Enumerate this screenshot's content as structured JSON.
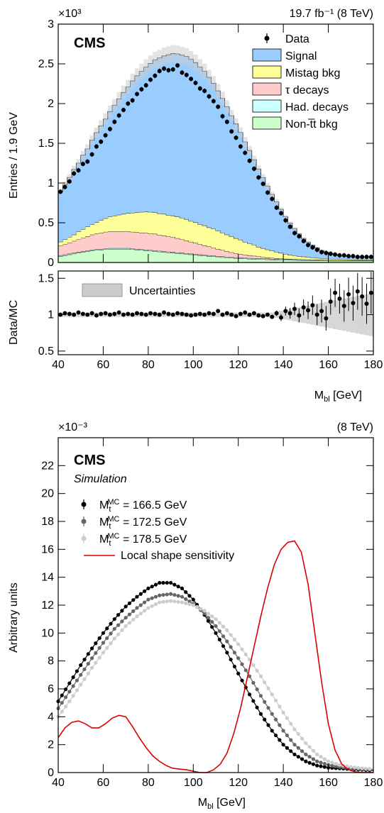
{
  "colors": {
    "signal": "#99ccff",
    "mistag": "#ffff99",
    "tau": "#ffcccc",
    "had": "#ccffff",
    "nontt": "#ccffcc",
    "unc": "#cccccc",
    "data": "#000000",
    "mc1665": "#000000",
    "mc1725": "#666666",
    "mc1785": "#cccccc",
    "sens": "#dd0000"
  },
  "chart_data": [
    {
      "type": "bar",
      "title": "",
      "cms_label": "CMS",
      "lumi_label": "19.7 fb⁻¹ (8 TeV)",
      "multiplier_label": "×10³",
      "xlabel": "M_bl [GeV]",
      "ylabel": "Entries / 1.9 GeV",
      "xlim": [
        40,
        180
      ],
      "ylim": [
        0,
        3
      ],
      "yticks": [
        "0",
        "0.5",
        "1",
        "1.5",
        "2",
        "2.5",
        "3"
      ],
      "xticks": [
        "40",
        "60",
        "80",
        "100",
        "120",
        "140",
        "160",
        "180"
      ],
      "legend_position": "top-right",
      "legend": [
        "Data",
        "Signal",
        "Mistag bkg",
        "τ decays",
        "Had. decays",
        "Non-t̅t bkg"
      ],
      "series": [
        {
          "name": "Data",
          "x": [
            41,
            43,
            45,
            47,
            49,
            51,
            53,
            55,
            57,
            59,
            61,
            63,
            65,
            67,
            69,
            71,
            73,
            75,
            77,
            79,
            81,
            83,
            85,
            87,
            89,
            91,
            93,
            95,
            97,
            99,
            101,
            103,
            105,
            107,
            109,
            111,
            113,
            115,
            117,
            119,
            121,
            123,
            125,
            127,
            129,
            131,
            133,
            135,
            137,
            139,
            141,
            143,
            145,
            147,
            149,
            151,
            153,
            155,
            157,
            159,
            161,
            163,
            165,
            167,
            169,
            171,
            173,
            175,
            177,
            179
          ],
          "values": [
            0.89,
            0.95,
            1.02,
            1.12,
            1.16,
            1.24,
            1.27,
            1.36,
            1.46,
            1.52,
            1.6,
            1.68,
            1.77,
            1.85,
            1.92,
            2.0,
            2.04,
            2.12,
            2.18,
            2.23,
            2.3,
            2.35,
            2.41,
            2.44,
            2.42,
            2.43,
            2.48,
            2.39,
            2.36,
            2.31,
            2.26,
            2.19,
            2.16,
            2.09,
            2.03,
            1.96,
            1.84,
            1.77,
            1.65,
            1.57,
            1.46,
            1.38,
            1.28,
            1.18,
            1.07,
            0.99,
            0.88,
            0.8,
            0.69,
            0.62,
            0.53,
            0.45,
            0.37,
            0.33,
            0.27,
            0.22,
            0.19,
            0.16,
            0.13,
            0.12,
            0.11,
            0.1,
            0.09,
            0.09,
            0.08,
            0.08,
            0.07,
            0.07,
            0.07,
            0.07
          ]
        },
        {
          "name": "Non-t̅t bkg",
          "values": [
            0.08,
            0.09,
            0.1,
            0.11,
            0.12,
            0.13,
            0.14,
            0.15,
            0.155,
            0.16,
            0.165,
            0.17,
            0.17,
            0.17,
            0.17,
            0.17,
            0.165,
            0.16,
            0.155,
            0.15,
            0.145,
            0.14,
            0.135,
            0.13,
            0.125,
            0.12,
            0.115,
            0.11,
            0.105,
            0.1,
            0.095,
            0.09,
            0.085,
            0.08,
            0.075,
            0.07,
            0.065,
            0.06,
            0.057,
            0.054,
            0.051,
            0.048,
            0.045,
            0.043,
            0.041,
            0.039,
            0.037,
            0.035,
            0.033,
            0.031,
            0.03,
            0.029,
            0.028,
            0.027,
            0.026,
            0.025,
            0.024,
            0.023,
            0.022,
            0.021,
            0.02,
            0.02,
            0.02,
            0.02,
            0.02,
            0.02,
            0.02,
            0.02,
            0.02,
            0.02
          ]
        },
        {
          "name": "Had. decays",
          "values": [
            0.01,
            0.01,
            0.01,
            0.01,
            0.01,
            0.01,
            0.01,
            0.01,
            0.01,
            0.01,
            0.01,
            0.01,
            0.01,
            0.01,
            0.01,
            0.01,
            0.01,
            0.01,
            0.01,
            0.01,
            0.01,
            0.01,
            0.01,
            0.01,
            0.01,
            0.01,
            0.01,
            0.01,
            0.01,
            0.01,
            0.01,
            0.01,
            0.01,
            0.01,
            0.01,
            0.01,
            0.01,
            0.01,
            0.01,
            0.01,
            0.01,
            0.01,
            0.01,
            0.01,
            0.01,
            0.01,
            0.01,
            0.01,
            0.01,
            0.01,
            0.01,
            0.01,
            0.01,
            0.01,
            0.01,
            0.01,
            0.01,
            0.01,
            0.01,
            0.01,
            0.005,
            0.005,
            0.005,
            0.005,
            0.005,
            0.005,
            0.005,
            0.005,
            0.005,
            0.005
          ]
        },
        {
          "name": "τ decays",
          "values": [
            0.12,
            0.13,
            0.14,
            0.15,
            0.16,
            0.17,
            0.18,
            0.19,
            0.2,
            0.2,
            0.21,
            0.21,
            0.21,
            0.21,
            0.21,
            0.21,
            0.21,
            0.21,
            0.21,
            0.21,
            0.21,
            0.21,
            0.2,
            0.2,
            0.19,
            0.19,
            0.18,
            0.17,
            0.16,
            0.15,
            0.14,
            0.13,
            0.12,
            0.11,
            0.1,
            0.09,
            0.08,
            0.07,
            0.06,
            0.05,
            0.045,
            0.04,
            0.035,
            0.03,
            0.025,
            0.02,
            0.015,
            0.012,
            0.01,
            0.008,
            0.006,
            0.005,
            0.004,
            0.003,
            0.002,
            0.002,
            0.001,
            0.001,
            0.001,
            0.001,
            0,
            0,
            0,
            0,
            0,
            0,
            0,
            0,
            0,
            0
          ]
        },
        {
          "name": "Mistag bkg",
          "values": [
            0.05,
            0.06,
            0.07,
            0.08,
            0.1,
            0.11,
            0.12,
            0.13,
            0.14,
            0.16,
            0.17,
            0.19,
            0.2,
            0.21,
            0.22,
            0.23,
            0.24,
            0.25,
            0.26,
            0.27,
            0.27,
            0.27,
            0.27,
            0.27,
            0.27,
            0.27,
            0.27,
            0.27,
            0.27,
            0.26,
            0.26,
            0.25,
            0.25,
            0.24,
            0.24,
            0.23,
            0.22,
            0.21,
            0.2,
            0.19,
            0.18,
            0.16,
            0.15,
            0.14,
            0.12,
            0.11,
            0.1,
            0.09,
            0.08,
            0.07,
            0.06,
            0.05,
            0.045,
            0.04,
            0.035,
            0.03,
            0.025,
            0.022,
            0.02,
            0.018,
            0.016,
            0.015,
            0.014,
            0.013,
            0.012,
            0.011,
            0.01,
            0.01,
            0.01,
            0.01
          ]
        },
        {
          "name": "Signal",
          "values": [
            0.63,
            0.69,
            0.75,
            0.82,
            0.86,
            0.93,
            0.98,
            1.06,
            1.13,
            1.19,
            1.25,
            1.32,
            1.39,
            1.46,
            1.53,
            1.59,
            1.66,
            1.72,
            1.77,
            1.82,
            1.87,
            1.92,
            1.96,
            1.99,
            2.02,
            2.04,
            2.05,
            2.05,
            2.05,
            2.04,
            2.01,
            1.98,
            1.94,
            1.89,
            1.83,
            1.76,
            1.69,
            1.61,
            1.52,
            1.44,
            1.35,
            1.26,
            1.17,
            1.07,
            0.98,
            0.89,
            0.8,
            0.71,
            0.63,
            0.55,
            0.47,
            0.4,
            0.34,
            0.28,
            0.23,
            0.19,
            0.16,
            0.13,
            0.1,
            0.08,
            0.07,
            0.06,
            0.05,
            0.05,
            0.04,
            0.04,
            0.04,
            0.04,
            0.04,
            0.04
          ]
        }
      ]
    },
    {
      "type": "scatter",
      "ylabel": "Data/MC",
      "xlim": [
        40,
        180
      ],
      "ylim": [
        0.45,
        1.6
      ],
      "yticks": [
        "0.5",
        "1",
        "1.5"
      ],
      "xticks": [
        "40",
        "60",
        "80",
        "100",
        "120",
        "140",
        "160",
        "180"
      ],
      "xlabel": "M_bl [GeV]",
      "legend": [
        "Uncertainties"
      ],
      "series": [
        {
          "name": "Data",
          "values": [
            1.0,
            1.02,
            1.01,
            1.0,
            1.03,
            1.01,
            1.0,
            1.02,
            0.99,
            1.01,
            1.02,
            1.0,
            1.01,
            1.03,
            1.0,
            1.01,
            1.0,
            1.02,
            1.01,
            1.0,
            1.02,
            1.01,
            1.0,
            1.03,
            1.01,
            1.0,
            1.02,
            1.01,
            1.0,
            0.99,
            1.0,
            1.01,
            1.0,
            1.02,
            1.01,
            1.05,
            1.0,
            1.02,
            1.0,
            0.98,
            1.01,
            1.03,
            1.0,
            1.02,
            0.99,
            0.98,
            1.0,
            0.97,
            1.02,
            0.96,
            1.05,
            1.02,
            1.08,
            0.99,
            1.1,
            1.06,
            1.13,
            1.0,
            1.05,
            0.95,
            1.18,
            1.3,
            1.22,
            1.12,
            1.28,
            1.16,
            1.32,
            1.25,
            1.15,
            1.3
          ]
        }
      ]
    },
    {
      "type": "line",
      "title": "",
      "cms_label": "CMS",
      "sim_label": "Simulation",
      "lumi_label": "(8 TeV)",
      "multiplier_label": "×10⁻³",
      "xlabel": "M_bl [GeV]",
      "ylabel": "Arbitrary units",
      "xlim": [
        40,
        180
      ],
      "ylim": [
        0,
        24
      ],
      "yticks": [
        "0",
        "2",
        "4",
        "6",
        "8",
        "10",
        "12",
        "14",
        "16",
        "18",
        "20",
        "22"
      ],
      "xticks": [
        "40",
        "60",
        "80",
        "100",
        "120",
        "140",
        "160",
        "180"
      ],
      "legend_position": "top-left",
      "x": [
        40,
        45,
        50,
        55,
        60,
        65,
        70,
        75,
        80,
        85,
        90,
        95,
        100,
        105,
        110,
        115,
        120,
        125,
        130,
        135,
        140,
        145,
        150,
        155,
        160,
        165,
        170,
        175,
        180
      ],
      "series": [
        {
          "name": "M_t^MC = 166.5 GeV",
          "values": [
            5.1,
            6.4,
            7.7,
            8.9,
            10.0,
            11.0,
            11.9,
            12.6,
            13.2,
            13.6,
            13.6,
            13.2,
            12.4,
            11.3,
            10.0,
            8.6,
            7.1,
            5.6,
            4.2,
            3.0,
            2.0,
            1.3,
            0.8,
            0.5,
            0.35,
            0.3,
            0.25,
            0.2,
            0.15
          ]
        },
        {
          "name": "M_t^MC = 172.5 GeV",
          "values": [
            4.6,
            5.8,
            7.0,
            8.2,
            9.3,
            10.3,
            11.1,
            11.8,
            12.4,
            12.7,
            12.8,
            12.6,
            12.1,
            11.4,
            10.5,
            9.4,
            8.2,
            6.9,
            5.5,
            4.2,
            3.0,
            2.0,
            1.3,
            0.8,
            0.55,
            0.4,
            0.3,
            0.25,
            0.2
          ]
        },
        {
          "name": "M_t^MC = 178.5 GeV",
          "values": [
            4.0,
            5.1,
            6.3,
            7.5,
            8.6,
            9.6,
            10.5,
            11.2,
            11.8,
            12.2,
            12.3,
            12.2,
            12.0,
            11.6,
            11.0,
            10.2,
            9.2,
            8.1,
            6.9,
            5.6,
            4.3,
            3.1,
            2.1,
            1.3,
            0.8,
            0.55,
            0.4,
            0.3,
            0.25
          ]
        },
        {
          "name": "Local shape sensitivity",
          "x": [
            40,
            43,
            46,
            49,
            52,
            55,
            58,
            61,
            64,
            67,
            70,
            73,
            76,
            79,
            82,
            85,
            88,
            91,
            94,
            97,
            100,
            103,
            106,
            109,
            112,
            115,
            118,
            121,
            124,
            127,
            130,
            133,
            136,
            139,
            142,
            145,
            148,
            151,
            154,
            157,
            160,
            163,
            166,
            169,
            172,
            175,
            178,
            180
          ],
          "values": [
            2.5,
            3.2,
            3.6,
            3.7,
            3.5,
            3.2,
            3.2,
            3.5,
            3.9,
            4.1,
            4.0,
            3.3,
            2.5,
            1.8,
            1.2,
            0.8,
            0.5,
            0.3,
            0.25,
            0.2,
            0.1,
            0.0,
            0.0,
            0.2,
            0.6,
            1.4,
            2.8,
            4.6,
            6.8,
            9.0,
            11.2,
            13.2,
            14.9,
            16.0,
            16.5,
            16.6,
            15.8,
            13.5,
            10.0,
            6.5,
            3.5,
            1.6,
            0.6,
            0.2,
            0.05,
            0.0,
            0.0,
            0.0
          ]
        }
      ]
    }
  ]
}
